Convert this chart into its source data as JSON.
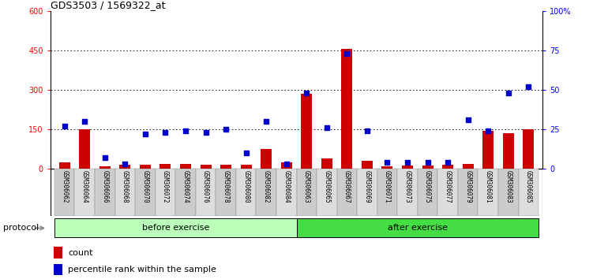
{
  "title": "GDS3503 / 1569322_at",
  "categories": [
    "GSM306062",
    "GSM306064",
    "GSM306066",
    "GSM306068",
    "GSM306070",
    "GSM306072",
    "GSM306074",
    "GSM306076",
    "GSM306078",
    "GSM306080",
    "GSM306082",
    "GSM306084",
    "GSM306063",
    "GSM306065",
    "GSM306067",
    "GSM306069",
    "GSM306071",
    "GSM306073",
    "GSM306075",
    "GSM306077",
    "GSM306079",
    "GSM306081",
    "GSM306083",
    "GSM306085"
  ],
  "bar_values": [
    25,
    150,
    10,
    15,
    15,
    20,
    20,
    15,
    15,
    15,
    75,
    25,
    285,
    40,
    455,
    30,
    10,
    12,
    12,
    15,
    20,
    145,
    135,
    150
  ],
  "dot_values": [
    27,
    30,
    7,
    3,
    22,
    23,
    24,
    23,
    25,
    10,
    30,
    3,
    48,
    26,
    73,
    24,
    4,
    4,
    4,
    4,
    31,
    24,
    48,
    52
  ],
  "before_exercise_count": 12,
  "after_exercise_count": 12,
  "ylim_left": [
    0,
    600
  ],
  "ylim_right": [
    0,
    100
  ],
  "yticks_left": [
    0,
    150,
    300,
    450,
    600
  ],
  "yticks_right": [
    0,
    25,
    50,
    75,
    100
  ],
  "ytick_labels_right": [
    "0",
    "25",
    "50",
    "75",
    "100%"
  ],
  "bar_color": "#cc0000",
  "dot_color": "#0000cc",
  "before_color": "#bbffbb",
  "after_color": "#44dd44",
  "label_bg_even": "#cccccc",
  "label_bg_odd": "#dddddd",
  "legend_count_label": "count",
  "legend_pct_label": "percentile rank within the sample"
}
